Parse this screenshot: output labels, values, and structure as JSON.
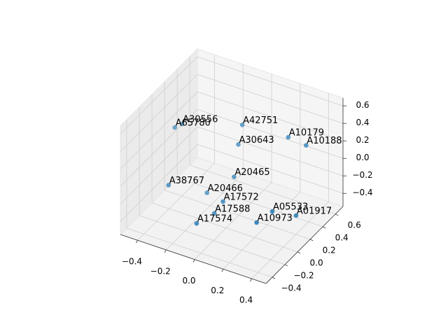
{
  "chart_data": {
    "type": "scatter3d",
    "labels": [
      "A30556",
      "A65780",
      "A42751",
      "A10179",
      "A10188",
      "A30643",
      "A20465",
      "A38767",
      "A20466",
      "A17572",
      "A17588",
      "A17574",
      "A10973",
      "A05533",
      "A01917"
    ],
    "x": [
      -0.34,
      -0.36,
      -0.02,
      0.24,
      0.33,
      -0.03,
      -0.02,
      -0.32,
      -0.17,
      -0.04,
      -0.07,
      -0.11,
      0.2,
      0.27,
      0.37
    ],
    "y": [
      0.07,
      0.0,
      0.3,
      0.44,
      0.52,
      0.26,
      0.17,
      -0.19,
      0.08,
      0.04,
      -0.03,
      -0.22,
      0.03,
      0.12,
      0.27
    ],
    "z": [
      0.4,
      0.4,
      0.4,
      0.3,
      0.2,
      0.2,
      -0.1,
      -0.1,
      -0.3,
      -0.3,
      -0.4,
      -0.4,
      -0.4,
      -0.3,
      -0.4
    ],
    "color": "#1f77b4",
    "xlim": [
      -0.52,
      0.5
    ],
    "ylim": [
      -0.5,
      0.72
    ],
    "zlim": [
      -0.55,
      0.69
    ],
    "xticks": [
      {
        "value": -0.4,
        "label": "−0.4"
      },
      {
        "value": -0.2,
        "label": "−0.2"
      },
      {
        "value": 0,
        "label": "0.0"
      },
      0.2,
      0.4
    ],
    "yticks": [
      {
        "value": -0.4,
        "label": "−0.4"
      },
      {
        "value": -0.2,
        "label": "−0.2"
      },
      {
        "value": 0,
        "label": "0.0"
      },
      0.2,
      0.4,
      0.6
    ],
    "zticks": [
      {
        "value": -0.4,
        "label": "−0.4"
      },
      {
        "value": -0.2,
        "label": "−0.2"
      },
      {
        "value": 0,
        "label": "0.0"
      },
      0.2,
      0.4,
      0.6
    ],
    "grid": true
  }
}
